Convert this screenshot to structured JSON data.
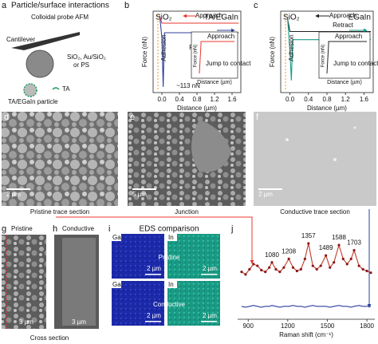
{
  "panels": {
    "a": {
      "letter": "a",
      "title": "Particle/surface interactions",
      "method": "Colloidal probe AFM",
      "cantilever": "Cantilever",
      "materials": "SiO₂, Au/SiO₂",
      "materials_2": "or PS",
      "ta": "TA",
      "particle": "TA/EGaIn particle"
    },
    "d": {
      "letter": "d",
      "caption": "Pristine trace section",
      "scale": "2 µm"
    },
    "e": {
      "letter": "e",
      "caption": "Junction",
      "scale": "5 µm"
    },
    "f": {
      "letter": "f",
      "caption": "Conductive trace section",
      "scale": "2 µm"
    },
    "g": {
      "letter": "g",
      "title": "Pristine",
      "scale": "3 µm"
    },
    "h": {
      "letter": "h",
      "title": "Conductive",
      "scale": "3 µm"
    },
    "cross_section": "Cross section",
    "i": {
      "letter": "i",
      "title": "EDS comparison",
      "elements": [
        "Ga",
        "In",
        "Ga",
        "In"
      ],
      "rows": [
        "Pristine",
        "Conductive"
      ],
      "scales": [
        "2 µm",
        "2 µm",
        "2 µm",
        "2 µm"
      ]
    }
  },
  "chart_data": [
    {
      "type": "line",
      "panel": "b",
      "title": "SiO₂",
      "subtitle": "TA/EGaIn",
      "x_label": "Distance (µm)",
      "y_label": "Force (nN)",
      "x": [
        -0.05,
        0,
        0.03,
        0.06,
        0.4,
        0.8,
        1.2,
        1.6,
        1.75
      ],
      "series": [
        {
          "color": "#e8372c",
          "values": [
            35,
            20,
            20,
            20,
            20,
            20,
            20,
            20,
            20
          ]
        },
        {
          "color": "#2e3f9e",
          "values": [
            35,
            -10,
            -113,
            0,
            0,
            0,
            0,
            0,
            0
          ]
        }
      ],
      "xlim": [
        -0.2,
        1.8
      ],
      "xticks": [
        {
          "value": 0,
          "label": "0.0"
        },
        0.4,
        0.8,
        1.2,
        1.6
      ],
      "ylim": [
        -125,
        45
      ],
      "annotations": [
        "Approach",
        "Retract",
        "Adhesion",
        "~113 nN"
      ],
      "inset": {
        "y_label": "Force (nN)",
        "x_label": "Distance (µm)",
        "annotations": [
          "Approach",
          "Jump to contact"
        ]
      }
    },
    {
      "type": "line",
      "panel": "c",
      "title": "SiO₂",
      "subtitle": "EGaIn",
      "x_label": "Distance (µm)",
      "y_label": "Force (nN)",
      "x": [
        -0.05,
        0,
        0.03,
        0.06,
        0.4,
        0.8,
        1.2,
        1.6,
        1.75
      ],
      "series": [
        {
          "color": "#222222",
          "values": [
            30,
            15,
            15,
            15,
            15,
            15,
            15,
            15,
            15
          ]
        },
        {
          "color": "#1a9a8a",
          "values": [
            30,
            -10,
            -45,
            5,
            5,
            5,
            5,
            5,
            5
          ]
        }
      ],
      "xlim": [
        -0.2,
        1.8
      ],
      "xticks": [
        {
          "value": 0,
          "label": "0.0"
        },
        0.4,
        0.8,
        1.2,
        1.6
      ],
      "ylim": [
        -60,
        40
      ],
      "annotations": [
        "Approach",
        "Retract",
        "Adhesion"
      ],
      "inset": {
        "y_label": "Force (nN)",
        "x_label": "Distance (µm)",
        "annotations": [
          "Approach",
          "Jump to contact"
        ]
      }
    },
    {
      "type": "line",
      "panel": "j",
      "x_label": "Raman shift (cm⁻¹)",
      "x": [
        850,
        880,
        910,
        940,
        970,
        1000,
        1030,
        1060,
        1080,
        1110,
        1140,
        1170,
        1208,
        1240,
        1270,
        1300,
        1330,
        1357,
        1390,
        1420,
        1450,
        1489,
        1520,
        1550,
        1588,
        1620,
        1650,
        1680,
        1703,
        1740,
        1770,
        1800,
        1830
      ],
      "series": [
        {
          "color": "#c0392b",
          "markers": true,
          "values": [
            55,
            52,
            58,
            64,
            62,
            57,
            55,
            60,
            66,
            58,
            55,
            60,
            70,
            60,
            56,
            58,
            70,
            88,
            62,
            58,
            62,
            74,
            60,
            66,
            86,
            70,
            64,
            70,
            80,
            62,
            58,
            56,
            54
          ]
        },
        {
          "color": "#2e3f9e",
          "values": [
            15,
            14,
            15,
            16,
            15,
            14,
            15,
            15,
            16,
            15,
            14,
            15,
            15,
            16,
            15,
            15,
            14,
            15,
            16,
            15,
            15,
            15,
            14,
            15,
            16,
            15,
            15,
            14,
            15,
            16,
            15,
            15,
            15
          ]
        }
      ],
      "peaks": [
        1080,
        1208,
        1357,
        1489,
        1588,
        1703
      ],
      "xlim": [
        820,
        1860
      ],
      "xticks": [
        900,
        1200,
        1500,
        1800
      ],
      "ylim": [
        0,
        100
      ]
    }
  ]
}
